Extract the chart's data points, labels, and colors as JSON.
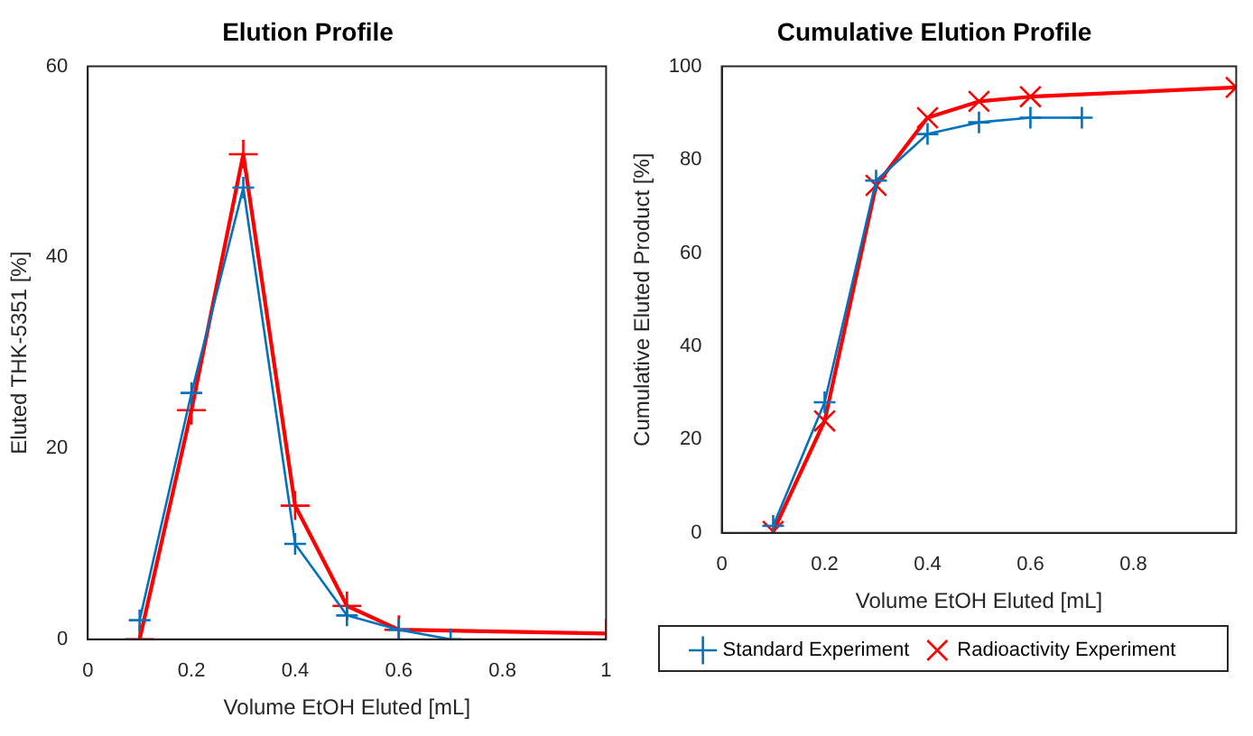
{
  "chart_data": [
    {
      "type": "line",
      "title": "Elution Profile",
      "xlabel": "Volume EtOH Eluted [mL]",
      "ylabel": "Eluted THK-5351 [%]",
      "xlim": [
        0,
        1
      ],
      "xticks": [
        0,
        0.2,
        0.4,
        0.6,
        0.8,
        1
      ],
      "ylim": [
        0,
        60
      ],
      "yticks": [
        0,
        20,
        40,
        60
      ],
      "grid": false,
      "legend": false,
      "marker": "cross",
      "series": [
        {
          "color": "#0072bd",
          "x": [
            0.1,
            0.2,
            0.3,
            0.4,
            0.5,
            0.6,
            0.7
          ],
          "values": [
            2,
            25.8,
            47.3,
            10,
            2.5,
            1,
            0
          ]
        },
        {
          "color": "#ff0000",
          "x": [
            0.1,
            0.2,
            0.3,
            0.4,
            0.5,
            0.6,
            1.0
          ],
          "values": [
            0,
            24,
            50.8,
            14,
            3.5,
            1,
            0.6
          ]
        }
      ]
    },
    {
      "type": "line",
      "title": "Cumulative Elution Profile",
      "xlabel": "Volume EtOH Eluted [mL]",
      "ylabel": "Cumulative Eluted Product [%]",
      "xlim": [
        0,
        1
      ],
      "xticks": [
        0,
        0.2,
        0.4,
        0.6,
        0.8
      ],
      "ylim": [
        0,
        100
      ],
      "yticks": [
        0,
        20,
        40,
        60,
        80,
        100
      ],
      "grid": false,
      "legend": "bottom",
      "series": [
        {
          "name": "Standard Experiment",
          "color": "#0072bd",
          "marker": "cross",
          "x": [
            0.1,
            0.2,
            0.3,
            0.4,
            0.5,
            0.6,
            0.7
          ],
          "values": [
            1.5,
            28,
            75.5,
            85.5,
            88,
            89,
            89
          ]
        },
        {
          "name": "Radioactivity Experiment",
          "color": "#ff0000",
          "marker": "x",
          "x": [
            0.1,
            0.2,
            0.3,
            0.4,
            0.5,
            0.6,
            1.0
          ],
          "values": [
            0.3,
            24,
            74.5,
            89,
            92.5,
            93.5,
            95.5
          ]
        }
      ]
    }
  ]
}
